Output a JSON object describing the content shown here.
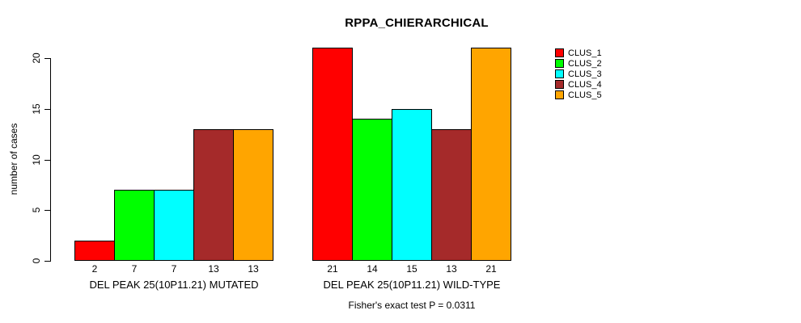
{
  "title": "RPPA_CHIERARCHICAL",
  "y_axis": {
    "label": "number of cases",
    "ticks": [
      0,
      5,
      10,
      15,
      20
    ]
  },
  "footer": "Fisher's exact test P = 0.0311",
  "legend": {
    "items": [
      {
        "label": "CLUS_1",
        "color": "#FF0000"
      },
      {
        "label": "CLUS_2",
        "color": "#00FF00"
      },
      {
        "label": "CLUS_3",
        "color": "#00FFFF"
      },
      {
        "label": "CLUS_4",
        "color": "#A52A2A"
      },
      {
        "label": "CLUS_5",
        "color": "#FFA500"
      }
    ]
  },
  "chart_data": {
    "type": "bar",
    "title": "RPPA_CHIERARCHICAL",
    "xlabel": "",
    "ylabel": "number of cases",
    "ylim": [
      0,
      20
    ],
    "y_ticks": [
      0,
      5,
      10,
      15,
      20
    ],
    "grid": false,
    "legend_position": "right",
    "categories": [
      "DEL PEAK 25(10P11.21) MUTATED",
      "DEL PEAK 25(10P11.21) WILD-TYPE"
    ],
    "series": [
      {
        "name": "CLUS_1",
        "color": "#FF0000",
        "values": [
          2,
          21
        ]
      },
      {
        "name": "CLUS_2",
        "color": "#00FF00",
        "values": [
          7,
          14
        ]
      },
      {
        "name": "CLUS_3",
        "color": "#00FFFF",
        "values": [
          7,
          15
        ]
      },
      {
        "name": "CLUS_4",
        "color": "#A52A2A",
        "values": [
          13,
          13
        ]
      },
      {
        "name": "CLUS_5",
        "color": "#FFA500",
        "values": [
          13,
          21
        ]
      }
    ],
    "annotation": "Fisher's exact test P = 0.0311"
  }
}
